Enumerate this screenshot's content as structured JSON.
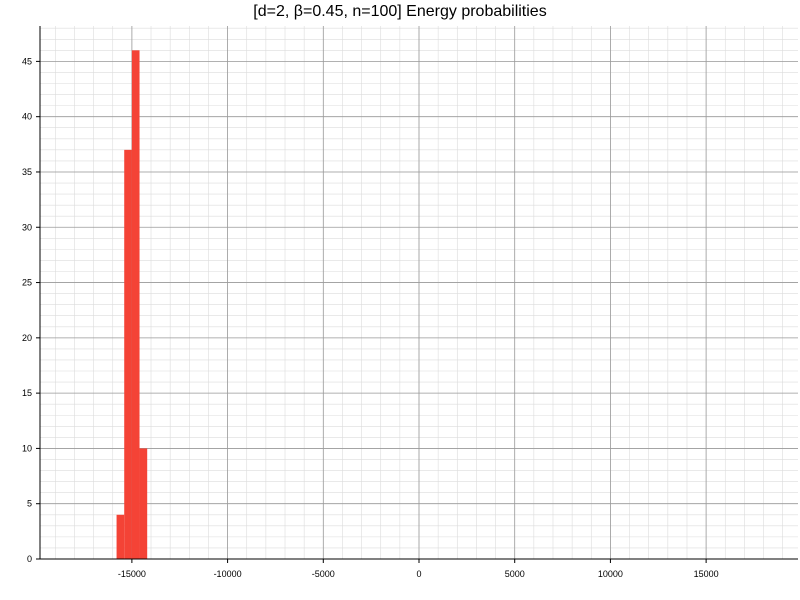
{
  "chart_data": {
    "type": "bar",
    "title": "[d=2, β=0.45, n=100] Energy probabilities",
    "xlabel": "",
    "ylabel": "",
    "xlim": [
      -19800,
      19800
    ],
    "ylim": [
      0,
      48.2
    ],
    "x_ticks": [
      -15000,
      -10000,
      -5000,
      0,
      5000,
      10000,
      15000
    ],
    "y_ticks": [
      0,
      5,
      10,
      15,
      20,
      25,
      30,
      35,
      40,
      45
    ],
    "bin_width": 400,
    "bins": [
      {
        "x": -15800,
        "value": 4
      },
      {
        "x": -15400,
        "value": 37
      },
      {
        "x": -15000,
        "value": 46
      },
      {
        "x": -14600,
        "value": 10
      }
    ],
    "grid": true,
    "bar_color": "#f44336"
  }
}
